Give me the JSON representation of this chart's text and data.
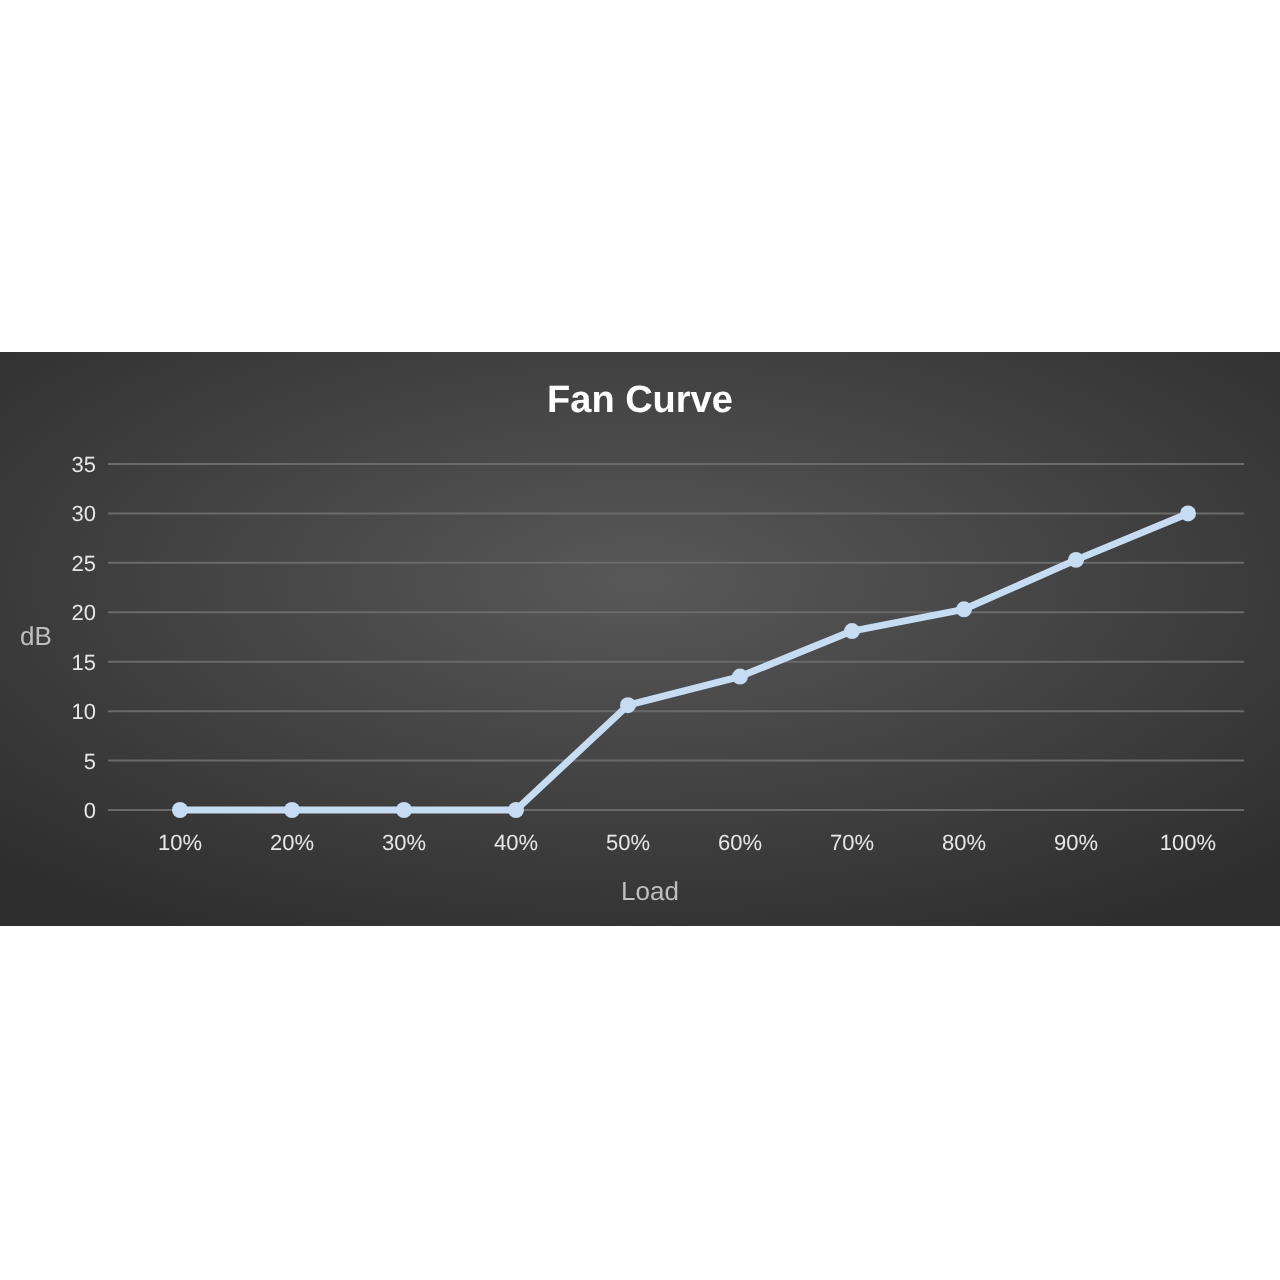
{
  "chart_data": {
    "type": "line",
    "title": "Fan Curve",
    "xlabel": "Load",
    "ylabel": "dB",
    "categories": [
      "10%",
      "20%",
      "30%",
      "40%",
      "50%",
      "60%",
      "70%",
      "80%",
      "90%",
      "100%"
    ],
    "series": [
      {
        "color": "#c5dcf2",
        "values": [
          0,
          0,
          0,
          0,
          10.6,
          13.5,
          18.1,
          20.3,
          25.3,
          30
        ]
      }
    ],
    "ylim": [
      0,
      35
    ],
    "yticks": [
      0,
      5,
      10,
      15,
      20,
      25,
      30,
      35
    ],
    "grid": "y",
    "marker": "circle",
    "line_style": "solid"
  }
}
